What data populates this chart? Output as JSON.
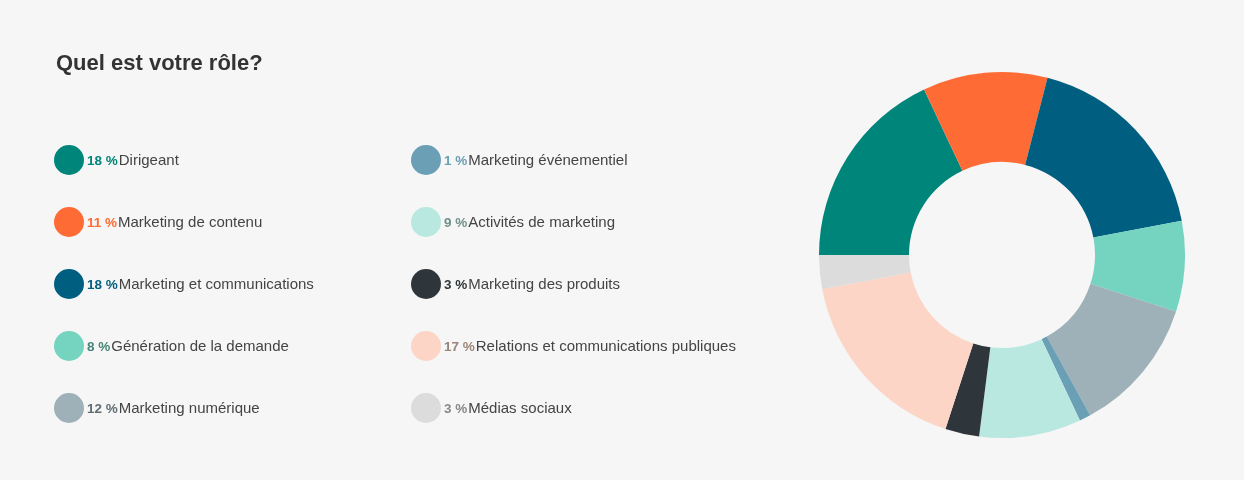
{
  "chart_data": {
    "type": "donut",
    "title": "Quel est votre rôle?",
    "categories": [
      "Dirigeant",
      "Marketing de contenu",
      "Marketing et communications",
      "Génération de la demande",
      "Marketing numérique",
      "Marketing événementiel",
      "Activités de marketing",
      "Marketing des produits",
      "Relations et communications publiques",
      "Médias sociaux"
    ],
    "values": [
      18,
      11,
      18,
      8,
      12,
      1,
      9,
      3,
      17,
      3
    ],
    "value_labels": [
      "18 %",
      "11 %",
      "18 %",
      "8 %",
      "12 %",
      "1 %",
      "9 %",
      "3 %",
      "17 %",
      "3 %"
    ],
    "colors": [
      "#00857a",
      "#ff6b35",
      "#005f80",
      "#74d4c0",
      "#9eb0b8",
      "#6a9fb5",
      "#b8e8df",
      "#2f363b",
      "#fdd5c6",
      "#dcdcdc"
    ],
    "legend": "left"
  }
}
